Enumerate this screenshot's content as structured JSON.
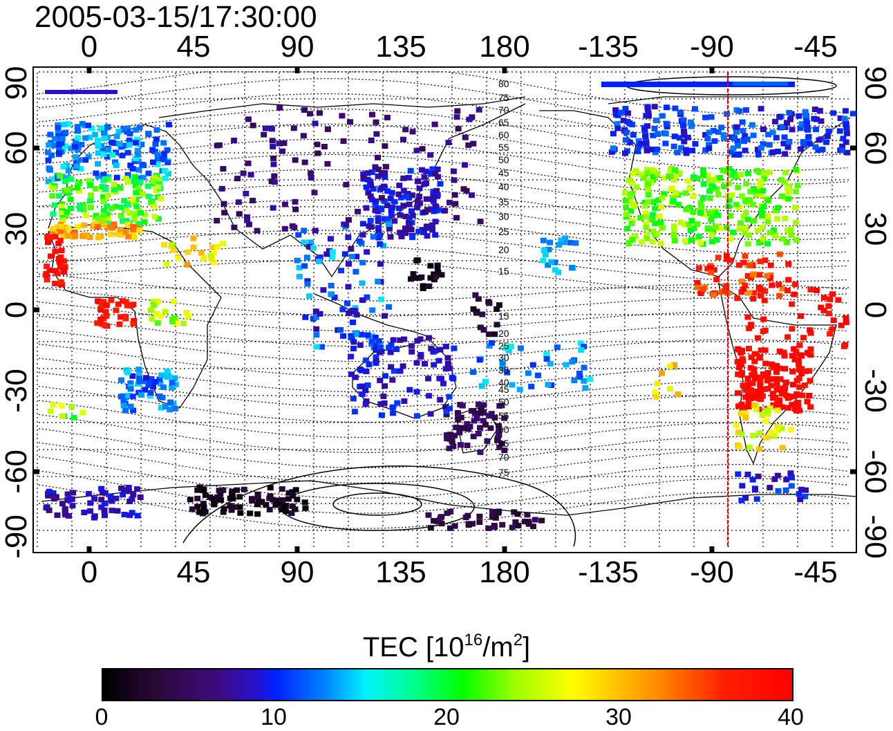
{
  "title": "2005-03-15/17:30:00",
  "axes": {
    "top_lon_ticks": [
      "0",
      "45",
      "90",
      "135",
      "180",
      "-135",
      "-90",
      "-45"
    ],
    "bottom_lon_ticks": [
      "0",
      "45",
      "90",
      "135",
      "180",
      "-135",
      "-90",
      "-45"
    ],
    "left_lat_ticks": [
      "90",
      "60",
      "30",
      "0",
      "-30",
      "-60",
      "-90"
    ],
    "right_lat_ticks": [
      "90",
      "60",
      "30",
      "0",
      "-30",
      "-60",
      "-90"
    ]
  },
  "contour_labels": [
    "80",
    "75",
    "70",
    "65",
    "60",
    "55",
    "50",
    "45",
    "40",
    "35",
    "30",
    "25",
    "20",
    "15",
    "15",
    "20",
    "25",
    "30",
    "35",
    "40",
    "45",
    "50",
    "55",
    "60",
    "65",
    "70",
    "75"
  ],
  "colorbar": {
    "title_main": "TEC  [10",
    "title_exp": "16",
    "title_mid": "/m",
    "title_exp2": "2",
    "title_end": "]",
    "ticks": [
      "0",
      "10",
      "20",
      "30",
      "40"
    ],
    "min": 0,
    "max": 40
  },
  "colors": {
    "meridian_line": "#ff0000",
    "frame": "#000000"
  }
}
